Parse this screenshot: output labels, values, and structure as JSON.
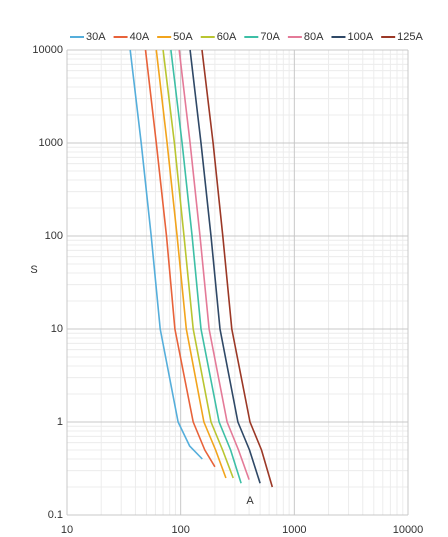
{
  "chart_data": {
    "type": "line",
    "xscale": "log",
    "yscale": "log",
    "xlabel": "A",
    "ylabel": "S",
    "xlim": [
      10,
      10000
    ],
    "ylim": [
      0.1,
      10000
    ],
    "xticks": [
      10,
      100,
      1000,
      10000
    ],
    "yticks": [
      0.1,
      1,
      10,
      100,
      1000,
      10000
    ],
    "grid": true,
    "minor_grid": true,
    "legend": "top",
    "series": [
      {
        "name": "30A",
        "color": "#55aedb",
        "x": [
          36,
          45,
          55,
          66,
          95,
          120,
          155
        ],
        "values": [
          10000,
          1000,
          100,
          10,
          1,
          0.55,
          0.4
        ]
      },
      {
        "name": "40A",
        "color": "#e8623a",
        "x": [
          49,
          61,
          75,
          89,
          129,
          163,
          200
        ],
        "values": [
          10000,
          1000,
          100,
          10,
          1,
          0.5,
          0.33
        ]
      },
      {
        "name": "50A",
        "color": "#f2a41c",
        "x": [
          61,
          76,
          93,
          112,
          160,
          203,
          250
        ],
        "values": [
          10000,
          1000,
          100,
          10,
          1,
          0.5,
          0.25
        ]
      },
      {
        "name": "60A",
        "color": "#b9c530",
        "x": [
          70,
          88,
          107,
          129,
          185,
          234,
          290
        ],
        "values": [
          10000,
          1000,
          100,
          10,
          1,
          0.5,
          0.25
        ]
      },
      {
        "name": "70A",
        "color": "#3dbfa6",
        "x": [
          82,
          103,
          126,
          151,
          218,
          275,
          340
        ],
        "values": [
          10000,
          1000,
          100,
          10,
          1,
          0.5,
          0.22
        ]
      },
      {
        "name": "80A",
        "color": "#e47a98",
        "x": [
          97,
          121,
          148,
          178,
          256,
          323,
          400
        ],
        "values": [
          10000,
          1000,
          100,
          10,
          1,
          0.5,
          0.24
        ]
      },
      {
        "name": "100A",
        "color": "#2f4866",
        "x": [
          121,
          151,
          185,
          222,
          319,
          403,
          500
        ],
        "values": [
          10000,
          1000,
          100,
          10,
          1,
          0.5,
          0.22
        ]
      },
      {
        "name": "125A",
        "color": "#9b3826",
        "x": [
          154,
          193,
          235,
          282,
          407,
          514,
          640
        ],
        "values": [
          10000,
          1000,
          100,
          10,
          1,
          0.5,
          0.2
        ]
      }
    ]
  }
}
